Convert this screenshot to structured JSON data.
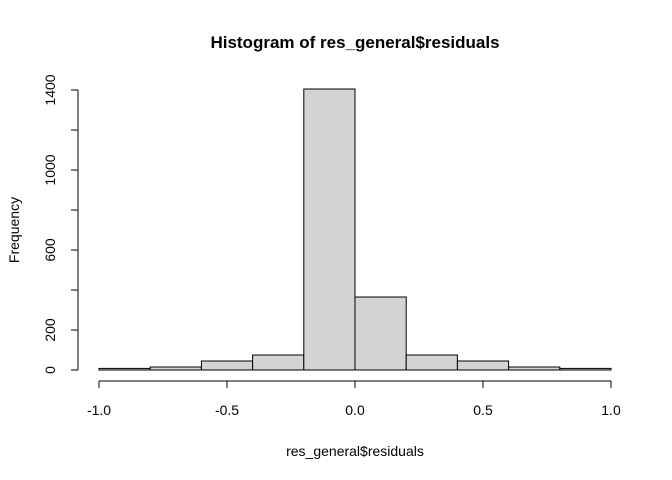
{
  "chart_data": {
    "type": "bar",
    "title": "Histogram of res_general$residuals",
    "xlabel": "res_general$residuals",
    "ylabel": "Frequency",
    "bins": [
      {
        "from": -1.0,
        "to": -0.8,
        "count": 8
      },
      {
        "from": -0.8,
        "to": -0.6,
        "count": 15
      },
      {
        "from": -0.6,
        "to": -0.4,
        "count": 45
      },
      {
        "from": -0.4,
        "to": -0.2,
        "count": 75
      },
      {
        "from": -0.2,
        "to": 0.0,
        "count": 1405
      },
      {
        "from": 0.0,
        "to": 0.2,
        "count": 365
      },
      {
        "from": 0.2,
        "to": 0.4,
        "count": 75
      },
      {
        "from": 0.4,
        "to": 0.6,
        "count": 45
      },
      {
        "from": 0.6,
        "to": 0.8,
        "count": 15
      },
      {
        "from": 0.8,
        "to": 1.0,
        "count": 8
      }
    ],
    "xlim": [
      -1.0,
      1.0
    ],
    "ylim": [
      0,
      1400
    ],
    "xticks": [
      -1.0,
      -0.5,
      0.0,
      0.5,
      1.0
    ],
    "xtick_labels": [
      "-1.0",
      "-0.5",
      "0.0",
      "0.5",
      "1.0"
    ],
    "yticks": [
      0,
      200,
      400,
      600,
      800,
      1000,
      1200,
      1400
    ],
    "ytick_labels": [
      "0",
      "200",
      "",
      "600",
      "",
      "1000",
      "",
      "1400"
    ],
    "grid": false,
    "colors": {
      "bar_fill": "#d3d3d3",
      "bar_stroke": "#000000"
    }
  }
}
